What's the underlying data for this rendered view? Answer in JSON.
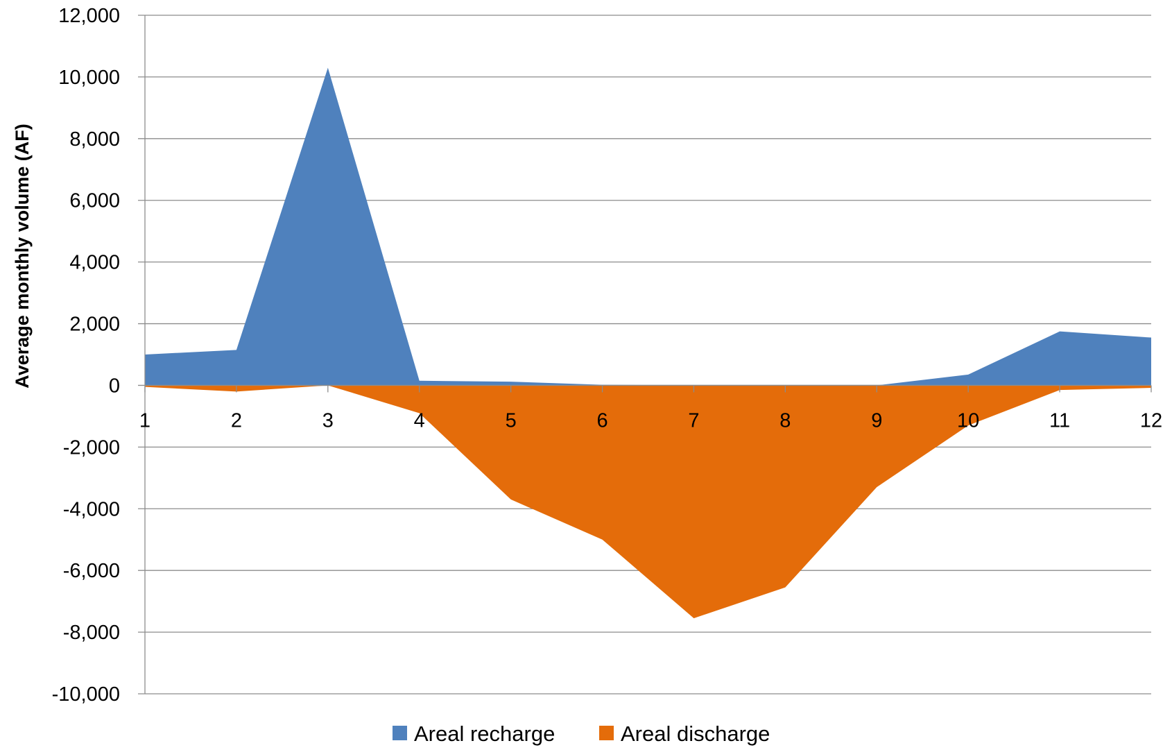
{
  "chart_data": {
    "type": "area",
    "x": [
      1,
      2,
      3,
      4,
      5,
      6,
      7,
      8,
      9,
      10,
      11,
      12
    ],
    "series": [
      {
        "name": "Areal recharge",
        "color": "#4f81bd",
        "values": [
          1000,
          1150,
          10300,
          150,
          120,
          20,
          0,
          0,
          0,
          350,
          1750,
          1550
        ]
      },
      {
        "name": "Areal discharge",
        "color": "#e46c0a",
        "values": [
          -50,
          -200,
          0,
          -900,
          -3700,
          -5000,
          -7550,
          -6550,
          -3300,
          -1300,
          -150,
          -80
        ]
      }
    ],
    "title": "",
    "xlabel": "",
    "ylabel": "Average monthly volume (AF)",
    "ylim": [
      -10000,
      12000
    ],
    "yticks": [
      12000,
      10000,
      8000,
      6000,
      4000,
      2000,
      0,
      -2000,
      -4000,
      -6000,
      -8000,
      -10000
    ],
    "ytick_labels": [
      "12,000",
      "10,000",
      "8,000",
      "6,000",
      "4,000",
      "2,000",
      "0",
      "-2,000",
      "-4,000",
      "-6,000",
      "-8,000",
      "-10,000"
    ],
    "xtick_labels": [
      "1",
      "2",
      "3",
      "4",
      "5",
      "6",
      "7",
      "8",
      "9",
      "10",
      "11",
      "12"
    ],
    "grid": true,
    "legend_position": "bottom"
  }
}
